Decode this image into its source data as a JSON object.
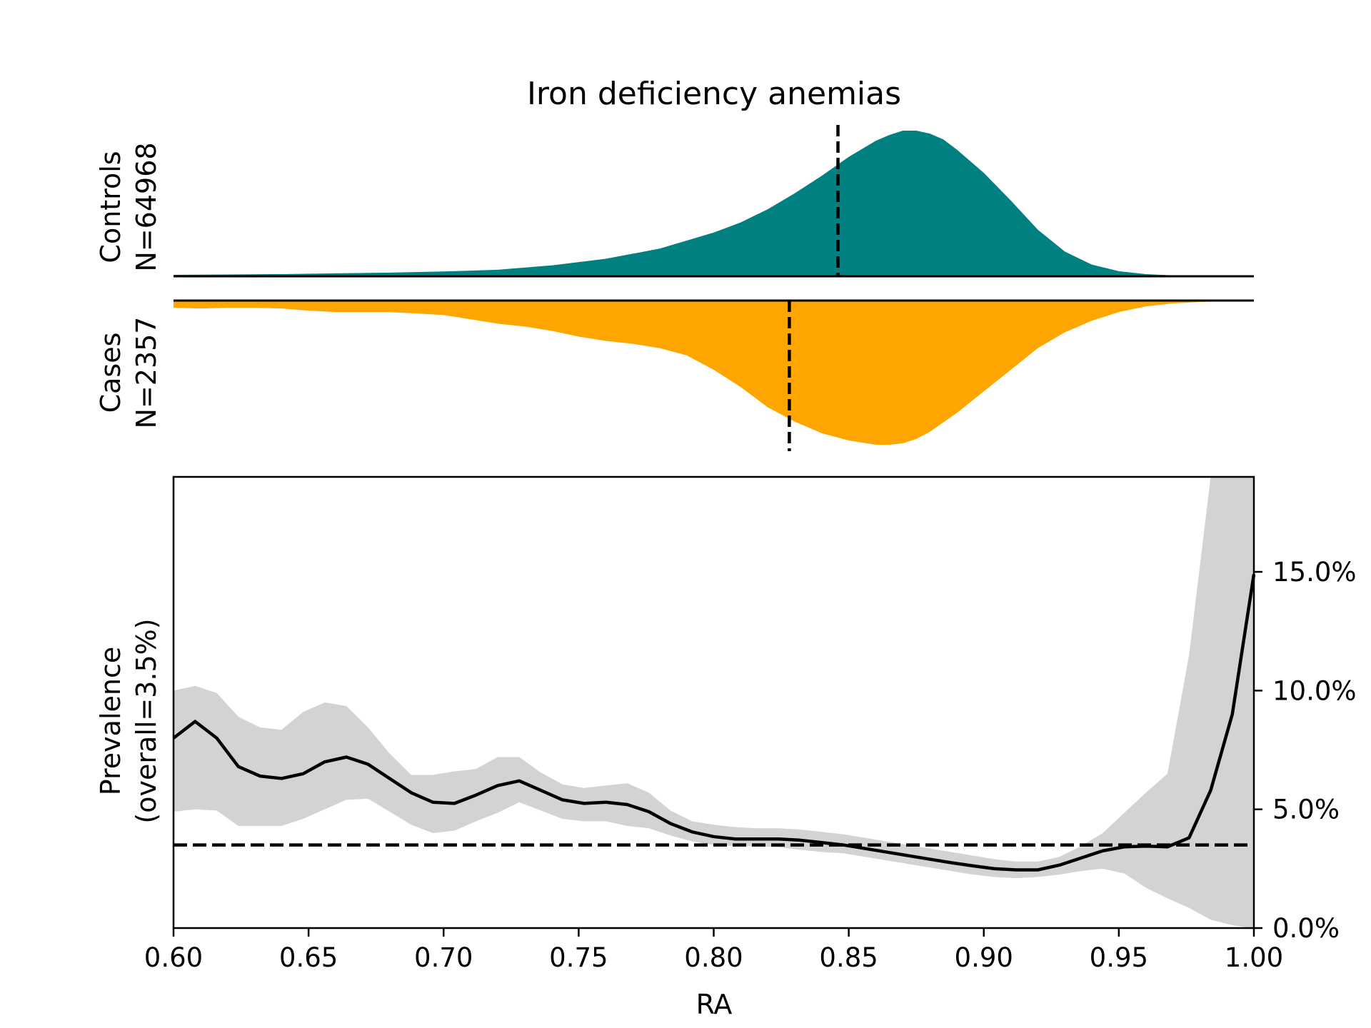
{
  "title": "Iron deficiency anemias",
  "colors": {
    "controls": "#008080",
    "cases": "#FFA500",
    "ci_band": "#D3D3D3",
    "line": "#000000",
    "background": "#FFFFFF"
  },
  "chart_data": [
    {
      "type": "area",
      "panel": "controls-density",
      "ylabel_line1": "Controls",
      "ylabel_line2": "N=64968",
      "xlim": [
        0.6,
        1.0
      ],
      "ylim": [
        0,
        1
      ],
      "mean_line_x": 0.846,
      "x": [
        0.6,
        0.62,
        0.64,
        0.66,
        0.68,
        0.7,
        0.72,
        0.74,
        0.76,
        0.78,
        0.8,
        0.81,
        0.82,
        0.83,
        0.84,
        0.85,
        0.86,
        0.865,
        0.87,
        0.875,
        0.88,
        0.885,
        0.89,
        0.9,
        0.91,
        0.92,
        0.93,
        0.94,
        0.95,
        0.96,
        0.97,
        0.98,
        1.0
      ],
      "y": [
        0.01,
        0.012,
        0.015,
        0.02,
        0.025,
        0.033,
        0.045,
        0.075,
        0.12,
        0.19,
        0.3,
        0.37,
        0.46,
        0.57,
        0.69,
        0.82,
        0.93,
        0.97,
        1.0,
        1.0,
        0.98,
        0.94,
        0.87,
        0.71,
        0.52,
        0.32,
        0.17,
        0.08,
        0.035,
        0.015,
        0.006,
        0.003,
        0.002
      ]
    },
    {
      "type": "area",
      "panel": "cases-density",
      "ylabel_line1": "Cases",
      "ylabel_line2": "N=2357",
      "xlim": [
        0.6,
        1.0
      ],
      "ylim": [
        0,
        1
      ],
      "mean_line_x": 0.828,
      "x": [
        0.6,
        0.61,
        0.62,
        0.63,
        0.64,
        0.65,
        0.66,
        0.67,
        0.68,
        0.69,
        0.7,
        0.71,
        0.72,
        0.73,
        0.74,
        0.75,
        0.76,
        0.77,
        0.78,
        0.79,
        0.8,
        0.81,
        0.82,
        0.83,
        0.84,
        0.85,
        0.86,
        0.865,
        0.87,
        0.875,
        0.88,
        0.89,
        0.9,
        0.91,
        0.92,
        0.93,
        0.94,
        0.95,
        0.96,
        0.97,
        0.98,
        0.99,
        1.0
      ],
      "y": [
        0.05,
        0.055,
        0.05,
        0.05,
        0.055,
        0.07,
        0.08,
        0.08,
        0.08,
        0.09,
        0.1,
        0.13,
        0.16,
        0.18,
        0.21,
        0.25,
        0.28,
        0.3,
        0.33,
        0.38,
        0.48,
        0.6,
        0.74,
        0.84,
        0.92,
        0.97,
        1.0,
        1.0,
        0.99,
        0.96,
        0.91,
        0.78,
        0.63,
        0.48,
        0.33,
        0.22,
        0.14,
        0.08,
        0.04,
        0.02,
        0.01,
        0.005,
        0.0
      ]
    },
    {
      "type": "line",
      "panel": "prevalence",
      "title": "",
      "xlabel": "RA",
      "ylabel_line1": "Prevalence",
      "ylabel_line2": "(overall=3.5%)",
      "xlim": [
        0.6,
        1.0
      ],
      "ylim": [
        0,
        19
      ],
      "xticks": [
        0.6,
        0.65,
        0.7,
        0.75,
        0.8,
        0.85,
        0.9,
        0.95,
        1.0
      ],
      "xtick_labels": [
        "0.60",
        "0.65",
        "0.70",
        "0.75",
        "0.80",
        "0.85",
        "0.90",
        "0.95",
        "1.00"
      ],
      "yticks": [
        0,
        5,
        10,
        15
      ],
      "ytick_labels": [
        "0.0%",
        "5.0%",
        "10.0%",
        "15.0%"
      ],
      "y_axis_side": "right",
      "overall_prevalence": 3.5,
      "x": [
        0.6,
        0.608,
        0.616,
        0.624,
        0.632,
        0.64,
        0.648,
        0.656,
        0.664,
        0.672,
        0.68,
        0.688,
        0.696,
        0.704,
        0.712,
        0.72,
        0.728,
        0.736,
        0.744,
        0.752,
        0.76,
        0.768,
        0.776,
        0.784,
        0.792,
        0.8,
        0.808,
        0.816,
        0.824,
        0.832,
        0.84,
        0.848,
        0.856,
        0.864,
        0.872,
        0.88,
        0.888,
        0.896,
        0.904,
        0.912,
        0.92,
        0.928,
        0.936,
        0.944,
        0.952,
        0.96,
        0.968,
        0.976,
        0.984,
        0.992,
        1.0
      ],
      "prevalence": [
        8.0,
        8.7,
        8.0,
        6.8,
        6.4,
        6.3,
        6.5,
        7.0,
        7.2,
        6.9,
        6.3,
        5.7,
        5.3,
        5.25,
        5.6,
        6.0,
        6.2,
        5.8,
        5.4,
        5.25,
        5.3,
        5.2,
        4.9,
        4.4,
        4.05,
        3.85,
        3.75,
        3.75,
        3.75,
        3.7,
        3.6,
        3.5,
        3.35,
        3.2,
        3.05,
        2.9,
        2.75,
        2.62,
        2.5,
        2.45,
        2.45,
        2.65,
        2.95,
        3.25,
        3.42,
        3.45,
        3.42,
        3.8,
        5.8,
        9.0,
        14.9
      ],
      "ci_lower": [
        4.9,
        5.0,
        4.95,
        4.3,
        4.3,
        4.3,
        4.6,
        5.0,
        5.4,
        5.45,
        4.9,
        4.35,
        4.0,
        4.1,
        4.5,
        4.85,
        5.3,
        4.95,
        4.6,
        4.5,
        4.5,
        4.3,
        4.2,
        3.9,
        3.65,
        3.5,
        3.45,
        3.45,
        3.4,
        3.3,
        3.2,
        3.15,
        3.0,
        2.85,
        2.7,
        2.55,
        2.4,
        2.25,
        2.15,
        2.1,
        2.15,
        2.25,
        2.4,
        2.5,
        2.3,
        1.7,
        1.25,
        0.85,
        0.35,
        0.12,
        0.0
      ],
      "ci_upper": [
        10.0,
        10.2,
        9.9,
        8.9,
        8.45,
        8.35,
        9.1,
        9.5,
        9.35,
        8.45,
        7.35,
        6.45,
        6.45,
        6.6,
        6.7,
        7.2,
        7.2,
        6.55,
        6.05,
        5.9,
        6.0,
        6.1,
        5.7,
        4.95,
        4.5,
        4.35,
        4.25,
        4.2,
        4.2,
        4.15,
        4.05,
        3.95,
        3.8,
        3.65,
        3.5,
        3.35,
        3.2,
        3.05,
        2.9,
        2.8,
        2.8,
        3.0,
        3.45,
        4.0,
        4.85,
        5.7,
        6.5,
        11.5,
        19.0,
        19.0,
        19.0
      ]
    }
  ]
}
